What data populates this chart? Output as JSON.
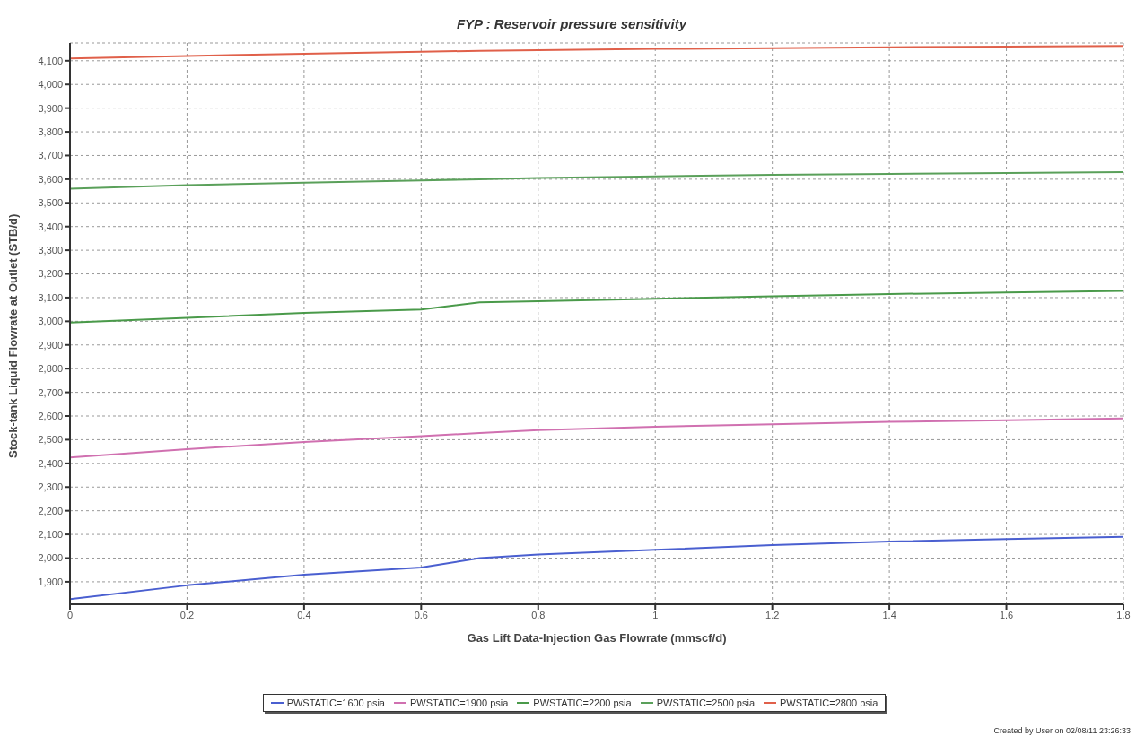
{
  "chart_data": {
    "type": "line",
    "title": "FYP : Reservoir pressure sensitivity",
    "xlabel": "Gas Lift Data-Injection Gas Flowrate (mmscf/d)",
    "ylabel": "Stock-tank Liquid Flowrate at Outlet (STB/d)",
    "x": [
      0,
      0.2,
      0.4,
      0.6,
      0.7,
      0.8,
      1.0,
      1.2,
      1.4,
      1.6,
      1.8
    ],
    "series": [
      {
        "name": "PWSTATIC=1600 psia",
        "color": "#4a5fd0",
        "values": [
          1827,
          1885,
          1930,
          1960,
          2000,
          2015,
          2035,
          2055,
          2070,
          2080,
          2090
        ]
      },
      {
        "name": "PWSTATIC=1900 psia",
        "color": "#d070b0",
        "values": [
          2425,
          2460,
          2490,
          2515,
          2528,
          2540,
          2555,
          2565,
          2575,
          2582,
          2590
        ]
      },
      {
        "name": "PWSTATIC=2200 psia",
        "color": "#4a9a4a",
        "values": [
          2995,
          3015,
          3035,
          3050,
          3080,
          3085,
          3095,
          3105,
          3115,
          3122,
          3128
        ]
      },
      {
        "name": "PWSTATIC=2500 psia",
        "color": "#5aa05a",
        "values": [
          3560,
          3575,
          3585,
          3595,
          3600,
          3605,
          3612,
          3618,
          3622,
          3626,
          3630
        ]
      },
      {
        "name": "PWSTATIC=2800 psia",
        "color": "#e0604a",
        "values": [
          4110,
          4120,
          4130,
          4138,
          4142,
          4145,
          4150,
          4153,
          4157,
          4160,
          4163
        ]
      }
    ],
    "xlim": [
      0,
      1.8
    ],
    "xticks": [
      0,
      0.2,
      0.4,
      0.6,
      0.8,
      1,
      1.2,
      1.4,
      1.6,
      1.8
    ],
    "ylim": [
      1805,
      4175
    ],
    "yticks": [
      {
        "value": 1900,
        "label": "1,900"
      },
      {
        "value": 2000,
        "label": "2,000"
      },
      {
        "value": 2100,
        "label": "2,100"
      },
      {
        "value": 2200,
        "label": "2,200"
      },
      {
        "value": 2300,
        "label": "2,300"
      },
      {
        "value": 2400,
        "label": "2,400"
      },
      {
        "value": 2500,
        "label": "2,500"
      },
      {
        "value": 2600,
        "label": "2,600"
      },
      {
        "value": 2700,
        "label": "2,700"
      },
      {
        "value": 2800,
        "label": "2,800"
      },
      {
        "value": 2900,
        "label": "2,900"
      },
      {
        "value": 3000,
        "label": "3,000"
      },
      {
        "value": 3100,
        "label": "3,100"
      },
      {
        "value": 3200,
        "label": "3,200"
      },
      {
        "value": 3300,
        "label": "3,300"
      },
      {
        "value": 3400,
        "label": "3,400"
      },
      {
        "value": 3500,
        "label": "3,500"
      },
      {
        "value": 3600,
        "label": "3,600"
      },
      {
        "value": 3700,
        "label": "3,700"
      },
      {
        "value": 3800,
        "label": "3,800"
      },
      {
        "value": 3900,
        "label": "3,900"
      },
      {
        "value": 4000,
        "label": "4,000"
      },
      {
        "value": 4100,
        "label": "4,100"
      }
    ],
    "grid": true,
    "legend": "bottom",
    "marker": "none",
    "line_style": "solid",
    "annotations": [
      "Created by User on 02/08/11 23:26:33"
    ]
  }
}
